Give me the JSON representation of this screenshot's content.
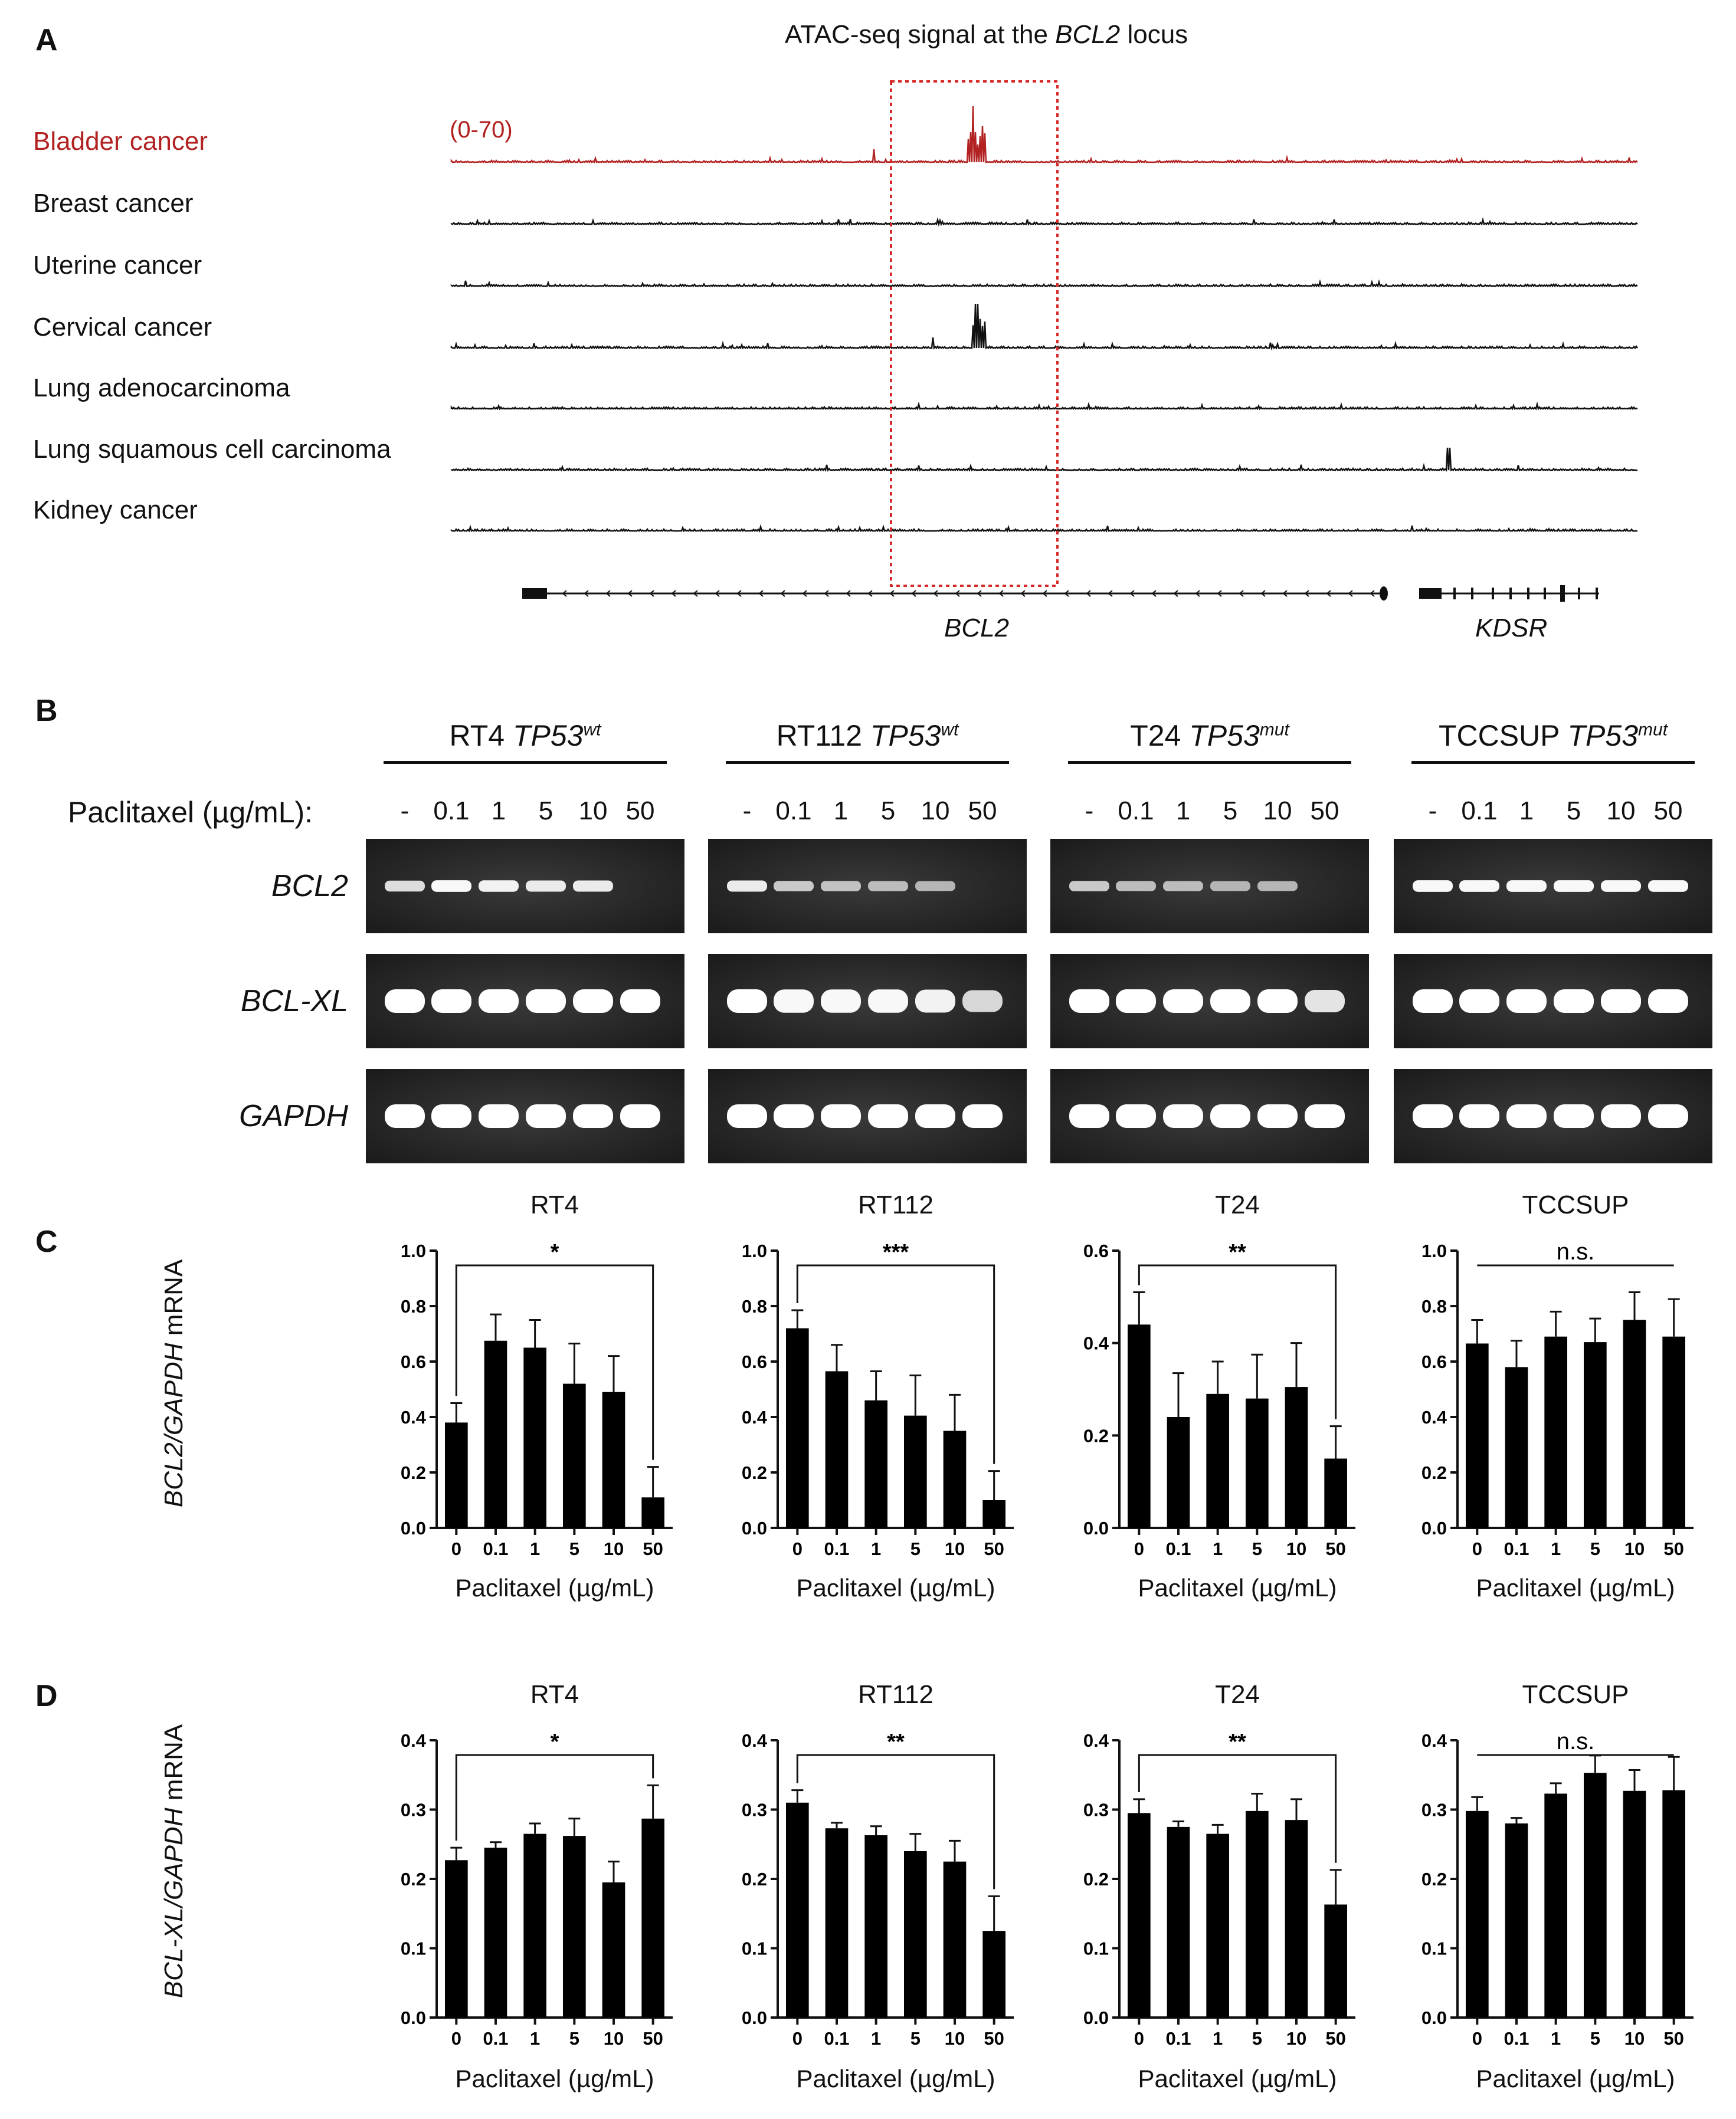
{
  "panels": {
    "A": "A",
    "B": "B",
    "C": "C",
    "D": "D"
  },
  "panel_a": {
    "title_prefix": "ATAC-seq signal at the ",
    "title_gene": "BCL2",
    "title_suffix": " locus",
    "scale": "(0-70)",
    "tracks": [
      {
        "label": "Bladder cancer",
        "color": "#b22222",
        "peak": "strong"
      },
      {
        "label": "Breast cancer",
        "color": "#111111",
        "peak": "none"
      },
      {
        "label": "Uterine cancer",
        "color": "#111111",
        "peak": "none"
      },
      {
        "label": "Cervical cancer",
        "color": "#111111",
        "peak": "moderate"
      },
      {
        "label": "Lung adenocarcinoma",
        "color": "#111111",
        "peak": "none"
      },
      {
        "label": "Lung squamous cell carcinoma",
        "color": "#111111",
        "peak": "small-right"
      },
      {
        "label": "Kidney cancer",
        "color": "#111111",
        "peak": "none"
      }
    ],
    "genes": [
      "BCL2",
      "KDSR"
    ],
    "highlight_color": "#d62828"
  },
  "panel_b": {
    "treatment_label": "Paclitaxel (µg/mL):",
    "lanes": [
      "-",
      "0.1",
      "1",
      "5",
      "10",
      "50"
    ],
    "cell_lines": [
      {
        "name": "RT4",
        "gene": "TP53",
        "status": "wt"
      },
      {
        "name": "RT112",
        "gene": "TP53",
        "status": "wt"
      },
      {
        "name": "T24",
        "gene": "TP53",
        "status": "mut"
      },
      {
        "name": "TCCSUP",
        "gene": "TP53",
        "status": "mut"
      }
    ],
    "rows": [
      "BCL2",
      "BCL-XL",
      "GAPDH"
    ],
    "band_intensity": {
      "BCL2": [
        [
          0.75,
          0.95,
          0.9,
          0.85,
          0.85,
          0.0
        ],
        [
          0.85,
          0.6,
          0.55,
          0.5,
          0.45,
          0.0
        ],
        [
          0.6,
          0.5,
          0.5,
          0.45,
          0.45,
          0.0
        ],
        [
          0.95,
          0.95,
          0.95,
          0.95,
          0.95,
          0.95
        ]
      ],
      "BCL-XL": [
        [
          1,
          1,
          1,
          1,
          1,
          1
        ],
        [
          1,
          0.95,
          0.95,
          0.95,
          0.9,
          0.7
        ],
        [
          1,
          1,
          1,
          1,
          1,
          0.8
        ],
        [
          1,
          1,
          1,
          1,
          1,
          1
        ]
      ],
      "GAPDH": [
        [
          1,
          1,
          1,
          1,
          1,
          1
        ],
        [
          1,
          1,
          1,
          1,
          1,
          1
        ],
        [
          1,
          1,
          1,
          1,
          1,
          1
        ],
        [
          1,
          1,
          1,
          1,
          1,
          1
        ]
      ]
    }
  },
  "chart_data": [
    {
      "type": "bar",
      "panel": "C",
      "title": "RT4",
      "categories": [
        "0",
        "0.1",
        "1",
        "5",
        "10",
        "50"
      ],
      "values": [
        0.38,
        0.675,
        0.65,
        0.52,
        0.49,
        0.11
      ],
      "errors": [
        0.07,
        0.095,
        0.1,
        0.145,
        0.13,
        0.11
      ],
      "ylim": [
        0,
        1.0
      ],
      "yticks": [
        "0.0",
        "0.2",
        "0.4",
        "0.6",
        "0.8",
        "1.0"
      ],
      "xlabel": "Paclitaxel (µg/mL)",
      "significance": "*"
    },
    {
      "type": "bar",
      "panel": "C",
      "title": "RT112",
      "categories": [
        "0",
        "0.1",
        "1",
        "5",
        "10",
        "50"
      ],
      "values": [
        0.72,
        0.565,
        0.46,
        0.405,
        0.35,
        0.1
      ],
      "errors": [
        0.065,
        0.095,
        0.105,
        0.145,
        0.13,
        0.105
      ],
      "ylim": [
        0,
        1.0
      ],
      "yticks": [
        "0.0",
        "0.2",
        "0.4",
        "0.6",
        "0.8",
        "1.0"
      ],
      "xlabel": "Paclitaxel (µg/mL)",
      "significance": "***"
    },
    {
      "type": "bar",
      "panel": "C",
      "title": "T24",
      "categories": [
        "0",
        "0.1",
        "1",
        "5",
        "10",
        "50"
      ],
      "values": [
        0.44,
        0.24,
        0.29,
        0.28,
        0.305,
        0.15
      ],
      "errors": [
        0.07,
        0.095,
        0.07,
        0.095,
        0.095,
        0.07
      ],
      "ylim": [
        0,
        0.6
      ],
      "yticks": [
        "0.0",
        "0.2",
        "0.4",
        "0.6"
      ],
      "xlabel": "Paclitaxel (µg/mL)",
      "significance": "**"
    },
    {
      "type": "bar",
      "panel": "C",
      "title": "TCCSUP",
      "categories": [
        "0",
        "0.1",
        "1",
        "5",
        "10",
        "50"
      ],
      "values": [
        0.665,
        0.58,
        0.69,
        0.67,
        0.75,
        0.69
      ],
      "errors": [
        0.085,
        0.095,
        0.09,
        0.085,
        0.1,
        0.135
      ],
      "ylim": [
        0,
        1.0
      ],
      "yticks": [
        "0.0",
        "0.2",
        "0.4",
        "0.6",
        "0.8",
        "1.0"
      ],
      "xlabel": "Paclitaxel (µg/mL)",
      "significance": "n.s."
    },
    {
      "type": "bar",
      "panel": "D",
      "title": "RT4",
      "categories": [
        "0",
        "0.1",
        "1",
        "5",
        "10",
        "50"
      ],
      "values": [
        0.227,
        0.245,
        0.265,
        0.262,
        0.195,
        0.287
      ],
      "errors": [
        0.018,
        0.008,
        0.015,
        0.025,
        0.03,
        0.048
      ],
      "ylim": [
        0,
        0.4
      ],
      "yticks": [
        "0.0",
        "0.1",
        "0.2",
        "0.3",
        "0.4"
      ],
      "xlabel": "Paclitaxel (µg/mL)",
      "significance": "*"
    },
    {
      "type": "bar",
      "panel": "D",
      "title": "RT112",
      "categories": [
        "0",
        "0.1",
        "1",
        "5",
        "10",
        "50"
      ],
      "values": [
        0.31,
        0.273,
        0.263,
        0.24,
        0.225,
        0.125
      ],
      "errors": [
        0.018,
        0.008,
        0.013,
        0.025,
        0.03,
        0.05
      ],
      "ylim": [
        0,
        0.4
      ],
      "yticks": [
        "0.0",
        "0.1",
        "0.2",
        "0.3",
        "0.4"
      ],
      "xlabel": "Paclitaxel (µg/mL)",
      "significance": "**"
    },
    {
      "type": "bar",
      "panel": "D",
      "title": "T24",
      "categories": [
        "0",
        "0.1",
        "1",
        "5",
        "10",
        "50"
      ],
      "values": [
        0.295,
        0.275,
        0.265,
        0.298,
        0.285,
        0.163
      ],
      "errors": [
        0.02,
        0.008,
        0.013,
        0.025,
        0.03,
        0.05
      ],
      "ylim": [
        0,
        0.4
      ],
      "yticks": [
        "0.0",
        "0.1",
        "0.2",
        "0.3",
        "0.4"
      ],
      "xlabel": "Paclitaxel (µg/mL)",
      "significance": "**"
    },
    {
      "type": "bar",
      "panel": "D",
      "title": "TCCSUP",
      "categories": [
        "0",
        "0.1",
        "1",
        "5",
        "10",
        "50"
      ],
      "values": [
        0.298,
        0.28,
        0.323,
        0.353,
        0.327,
        0.328
      ],
      "errors": [
        0.02,
        0.008,
        0.015,
        0.025,
        0.03,
        0.048
      ],
      "ylim": [
        0,
        0.4
      ],
      "yticks": [
        "0.0",
        "0.1",
        "0.2",
        "0.3",
        "0.4"
      ],
      "xlabel": "Paclitaxel (µg/mL)",
      "significance": "n.s."
    }
  ],
  "y_axis_labels": {
    "C": {
      "gene": "BCL2/GAPDH",
      "suffix": " mRNA"
    },
    "D": {
      "gene": "BCL-XL/GAPDH",
      "suffix": " mRNA"
    }
  }
}
